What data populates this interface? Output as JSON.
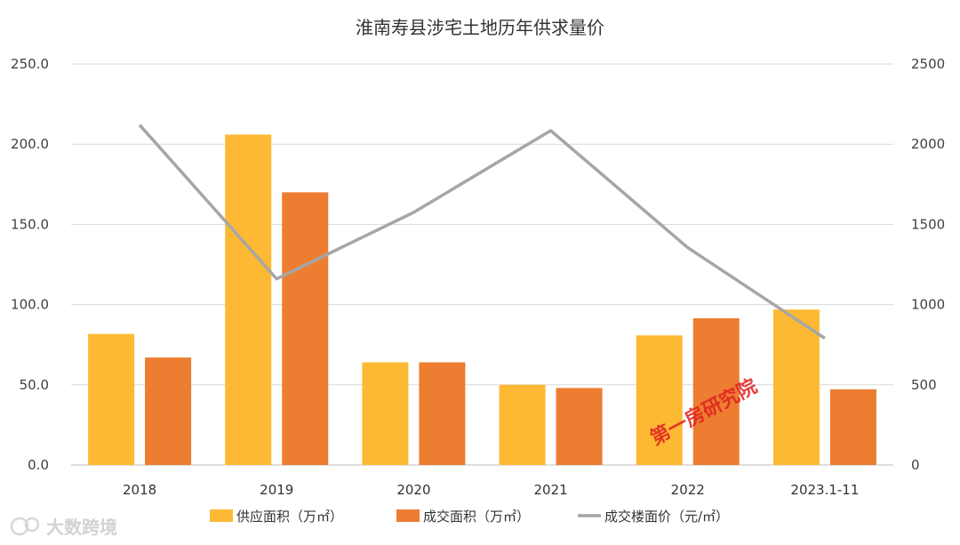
{
  "chart_data": {
    "type": "bar",
    "title": "淮南寿县涉宅土地历年供求量价",
    "categories": [
      "2018",
      "2019",
      "2020",
      "2021",
      "2022",
      "2023.1-11"
    ],
    "series": [
      {
        "name": "供应面积（万㎡）",
        "type": "bar",
        "axis": "left",
        "color": "#FDB933",
        "values": [
          81.7,
          206.0,
          64.0,
          50.0,
          80.8,
          96.9
        ]
      },
      {
        "name": "成交面积（万㎡）",
        "type": "bar",
        "axis": "left",
        "color": "#ED7D31",
        "values": [
          67.0,
          170.0,
          64.0,
          48.0,
          91.5,
          47.2
        ]
      },
      {
        "name": "成交楼面价（元/㎡）",
        "type": "line",
        "axis": "right",
        "color": "#A6A6A6",
        "values": [
          2120,
          1160,
          1575,
          2085,
          1355,
          790
        ]
      }
    ],
    "yLeft": {
      "min": 0,
      "max": 250,
      "ticks": [
        "0.0",
        "50.0",
        "100.0",
        "150.0",
        "200.0",
        "250.0"
      ]
    },
    "yRight": {
      "min": 0,
      "max": 2500,
      "ticks": [
        "0",
        "500",
        "1000",
        "1500",
        "2000",
        "2500"
      ]
    },
    "grid": true,
    "legend_position": "bottom"
  },
  "watermarks": {
    "main": "第一房研究院",
    "corner": "大数跨境"
  }
}
